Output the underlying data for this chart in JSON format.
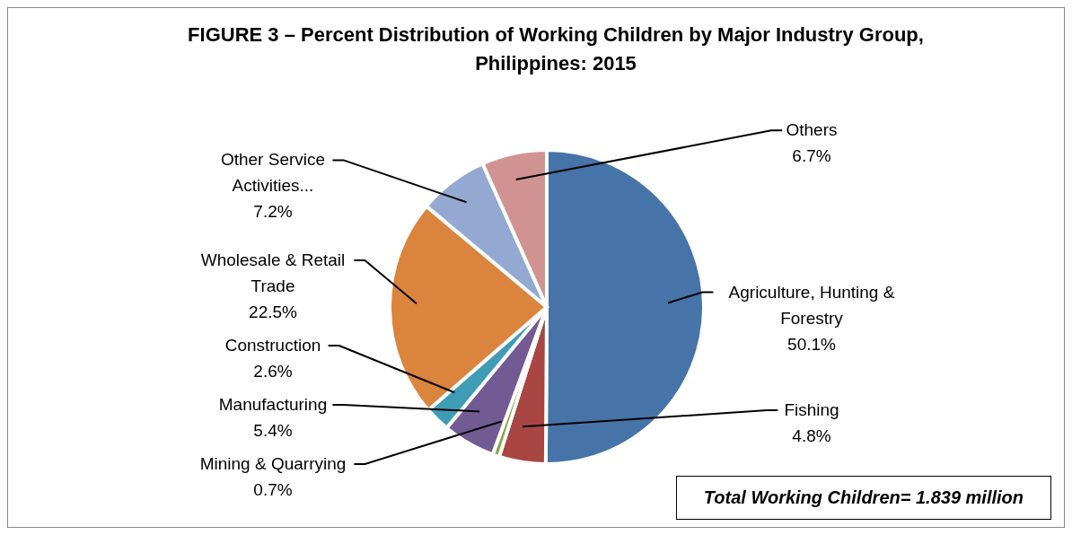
{
  "chart_data": {
    "type": "pie",
    "title": "FIGURE 3 – Percent Distribution of Working Children by Major Industry Group,  Philippines:  2015",
    "categories": [
      "Agriculture, Hunting & Forestry",
      "Fishing",
      "Mining & Quarrying",
      "Manufacturing",
      "Construction",
      "Wholesale & Retail Trade",
      "Other Service Activities...",
      "Others"
    ],
    "values": [
      50.1,
      4.8,
      0.7,
      5.4,
      2.6,
      22.5,
      7.2,
      6.7
    ],
    "legend": false,
    "value_labels": [
      "50.1%",
      "4.8%",
      "0.7%",
      "5.4%",
      "2.6%",
      "22.5%",
      "7.2%",
      "6.7%"
    ],
    "colors": [
      "#4674a9",
      "#a94543",
      "#8aa64a",
      "#725a93",
      "#3f9cb5",
      "#db843d",
      "#94a9d1",
      "#d09392"
    ],
    "annotations": [
      "Total Working Children= 1.839 million"
    ]
  }
}
